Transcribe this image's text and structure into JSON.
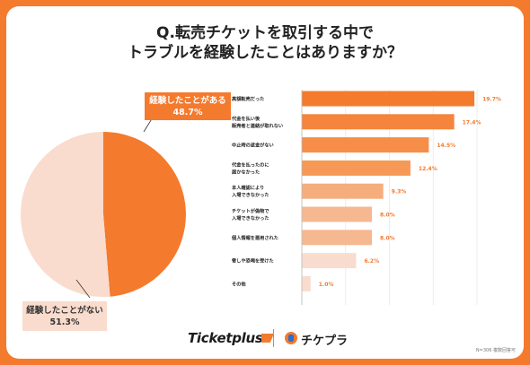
{
  "title_lines": [
    "Q.転売チケットを取引する中で",
    "トラブルを経験したことはありますか？"
  ],
  "footnote": "N=306 複数回答可",
  "brand": {
    "left": "Ticketplus",
    "right": "チケプラ"
  },
  "colors": {
    "background": "#f47a2e",
    "accent": "#f47a2e",
    "pie_light": "#f9dccd"
  },
  "chart_data": [
    {
      "type": "pie",
      "slices": [
        {
          "label": "経験したことがある",
          "value": 48.7,
          "display": "48.7%",
          "color": "#f47a2e"
        },
        {
          "label": "経験したことがない",
          "value": 51.3,
          "display": "51.3%",
          "color": "#f9dccd"
        }
      ]
    },
    {
      "type": "bar",
      "orientation": "horizontal",
      "categories": [
        [
          "高額転売だった"
        ],
        [
          "代金を払い後",
          "販売者と連絡が取れない"
        ],
        [
          "中止時の返金がない"
        ],
        [
          "代金を払ったのに",
          "届かなかった"
        ],
        [
          "本人確認により",
          "入場できなかった"
        ],
        [
          "チケットが偽物で",
          "入場できなかった"
        ],
        [
          "個人情報を悪用された"
        ],
        [
          "脅しや恐喝を受けた"
        ],
        [
          "その他"
        ]
      ],
      "values": [
        19.7,
        17.4,
        14.5,
        12.4,
        9.3,
        8.0,
        8.0,
        6.2,
        1.0
      ],
      "value_labels": [
        "19.7%",
        "17.4%",
        "14.5%",
        "12.4%",
        "9.3%",
        "8.0%",
        "8.0%",
        "6.2%",
        "1.0%"
      ],
      "colors": [
        "#f47a2e",
        "#f5843c",
        "#f68e4a",
        "#f69957",
        "#f6ad7e",
        "#f6b891",
        "#f6b891",
        "#f9dccd",
        "#f9dccd"
      ],
      "xlim": [
        0,
        20
      ],
      "grid": true
    }
  ]
}
